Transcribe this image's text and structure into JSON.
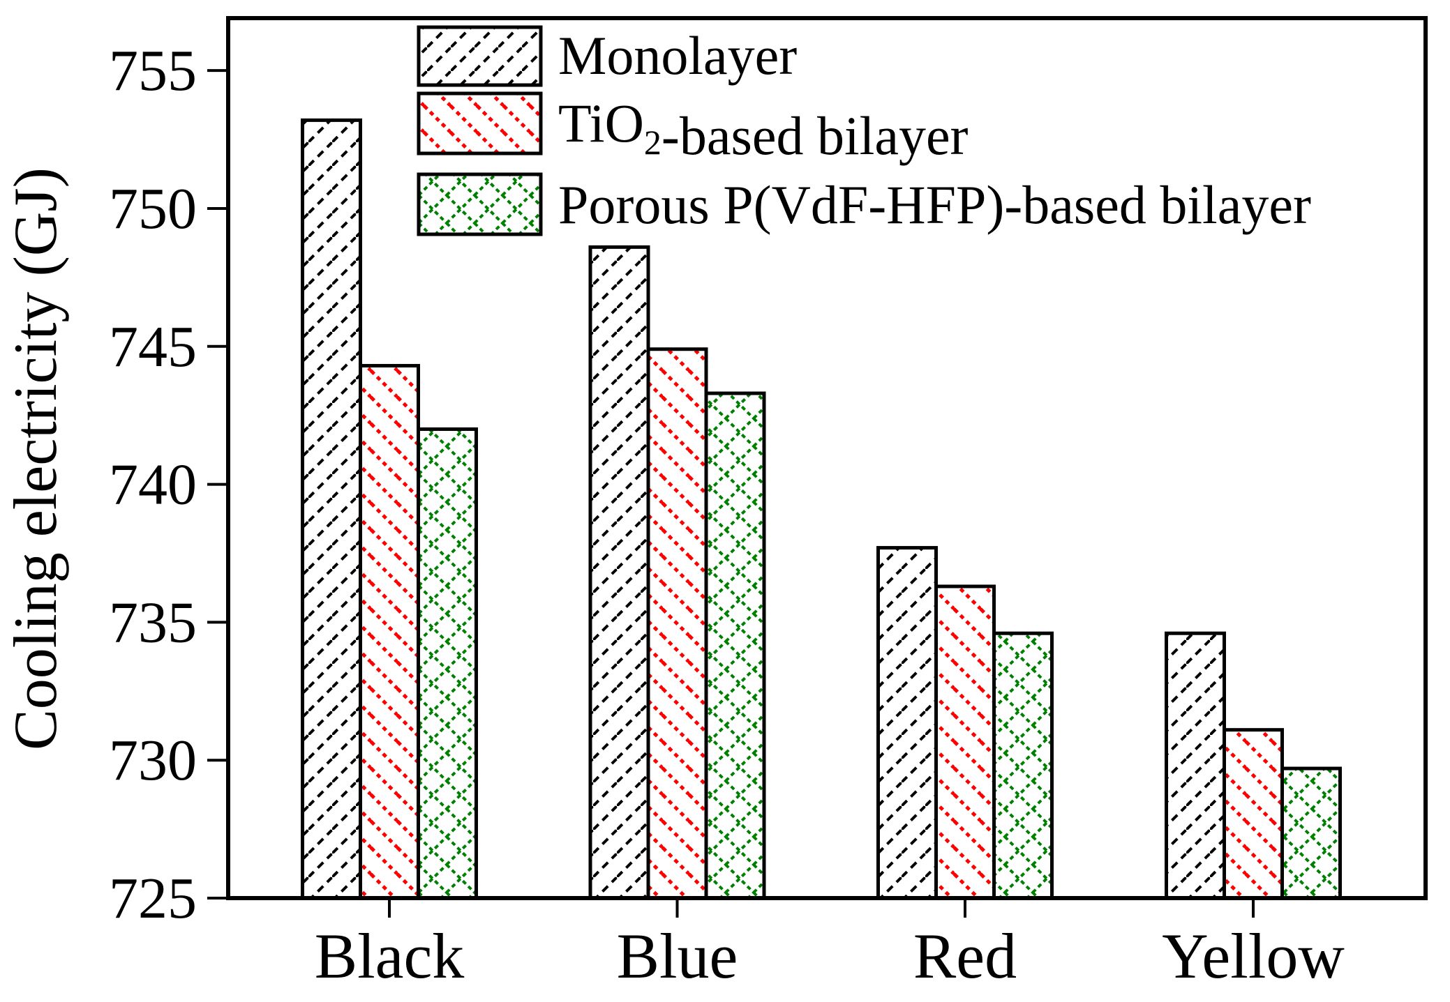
{
  "chart_data": {
    "type": "bar",
    "title": "",
    "xlabel": "",
    "ylabel": "Cooling electricity (GJ)",
    "categories": [
      "Black",
      "Blue",
      "Red",
      "Yellow"
    ],
    "series": [
      {
        "name": "Monolayer",
        "label_parts": [
          {
            "text": "Monolayer"
          }
        ],
        "color": "#000000",
        "hatch": "diagonal-up",
        "values": [
          753.2,
          748.6,
          737.7,
          734.6
        ]
      },
      {
        "name": "TiO2-based bilayer",
        "label_parts": [
          {
            "text": "TiO"
          },
          {
            "text": "2",
            "subscript": true
          },
          {
            "text": "-based bilayer"
          }
        ],
        "color": "#ff0000",
        "hatch": "diagonal-down",
        "values": [
          744.3,
          744.9,
          736.3,
          731.1
        ]
      },
      {
        "name": "Porous P(VdF-HFP)-based bilayer",
        "label_parts": [
          {
            "text": "Porous P(VdF-HFP)-based bilayer"
          }
        ],
        "color": "#008000",
        "hatch": "crosshatch",
        "values": [
          742.0,
          743.3,
          734.6,
          729.7
        ]
      }
    ],
    "ylim": [
      725,
      756.9
    ],
    "yticks": [
      725,
      730,
      735,
      740,
      745,
      750,
      755
    ],
    "grid": false,
    "legend_position": "top-left-inside",
    "axis_color": "#000000",
    "background_color": "#ffffff"
  }
}
